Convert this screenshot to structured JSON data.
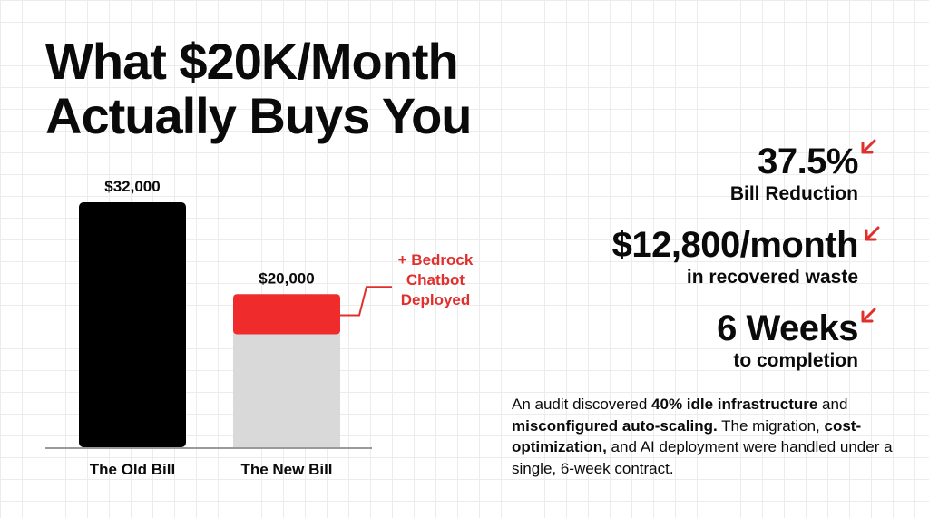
{
  "headline": {
    "line1": "What $20K/Month",
    "line2": "Actually Buys You"
  },
  "chart_data": {
    "type": "bar",
    "categories": [
      "The Old Bill",
      "The New Bill"
    ],
    "values": [
      32000,
      20000
    ],
    "value_labels": [
      "$32,000",
      "$20,000"
    ],
    "stacked_segment": {
      "category": "The New Bill",
      "label": "+ Bedrock Chatbot Deployed",
      "label_lines": [
        "+ Bedrock",
        "Chatbot",
        "Deployed"
      ],
      "fraction_of_bar": 0.25
    },
    "colors": {
      "old_bill": "#000000",
      "new_bill_base": "#d9d9d9",
      "new_bill_segment": "#ef2b2b",
      "annotation": "#e0302e"
    },
    "ylim": [
      0,
      34000
    ],
    "grid": true,
    "title": "",
    "xlabel": "",
    "ylabel": ""
  },
  "stats": [
    {
      "value": "37.5%",
      "caption": "Bill Reduction",
      "icon": "arrow-down-left-icon"
    },
    {
      "value": "$12,800/month",
      "caption": "in recovered waste",
      "icon": "arrow-down-left-icon"
    },
    {
      "value": "6 Weeks",
      "caption": "to completion",
      "icon": "arrow-down-left-icon"
    }
  ],
  "summary": {
    "p1": "An audit discovered ",
    "b1": "40% idle infrastructure",
    "p2": " and ",
    "b2": "misconfigured auto-scaling.",
    "p3": " The migration, ",
    "b3": "cost-optimization,",
    "p4": " and AI deployment were handled under a single, 6-week contract."
  },
  "accent_color": "#e0302e"
}
